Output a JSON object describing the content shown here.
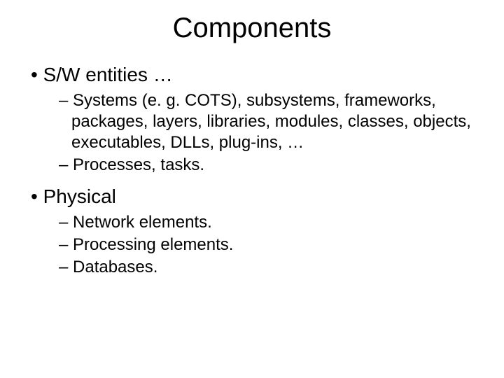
{
  "title": "Components",
  "bullets": [
    {
      "label": "S/W entities …",
      "children": [
        "Systems (e. g. COTS), subsystems, frameworks, packages, layers, libraries, modules, classes, objects, executables, DLLs, plug-ins, …",
        "Processes, tasks."
      ]
    },
    {
      "label": "Physical",
      "children": [
        "Network elements.",
        "Processing elements.",
        "Databases."
      ]
    }
  ],
  "colors": {
    "background": "#ffffff",
    "text": "#000000"
  },
  "typography": {
    "title_fontsize": 40,
    "level1_fontsize": 28,
    "level2_fontsize": 24,
    "font_family": "Arial"
  }
}
